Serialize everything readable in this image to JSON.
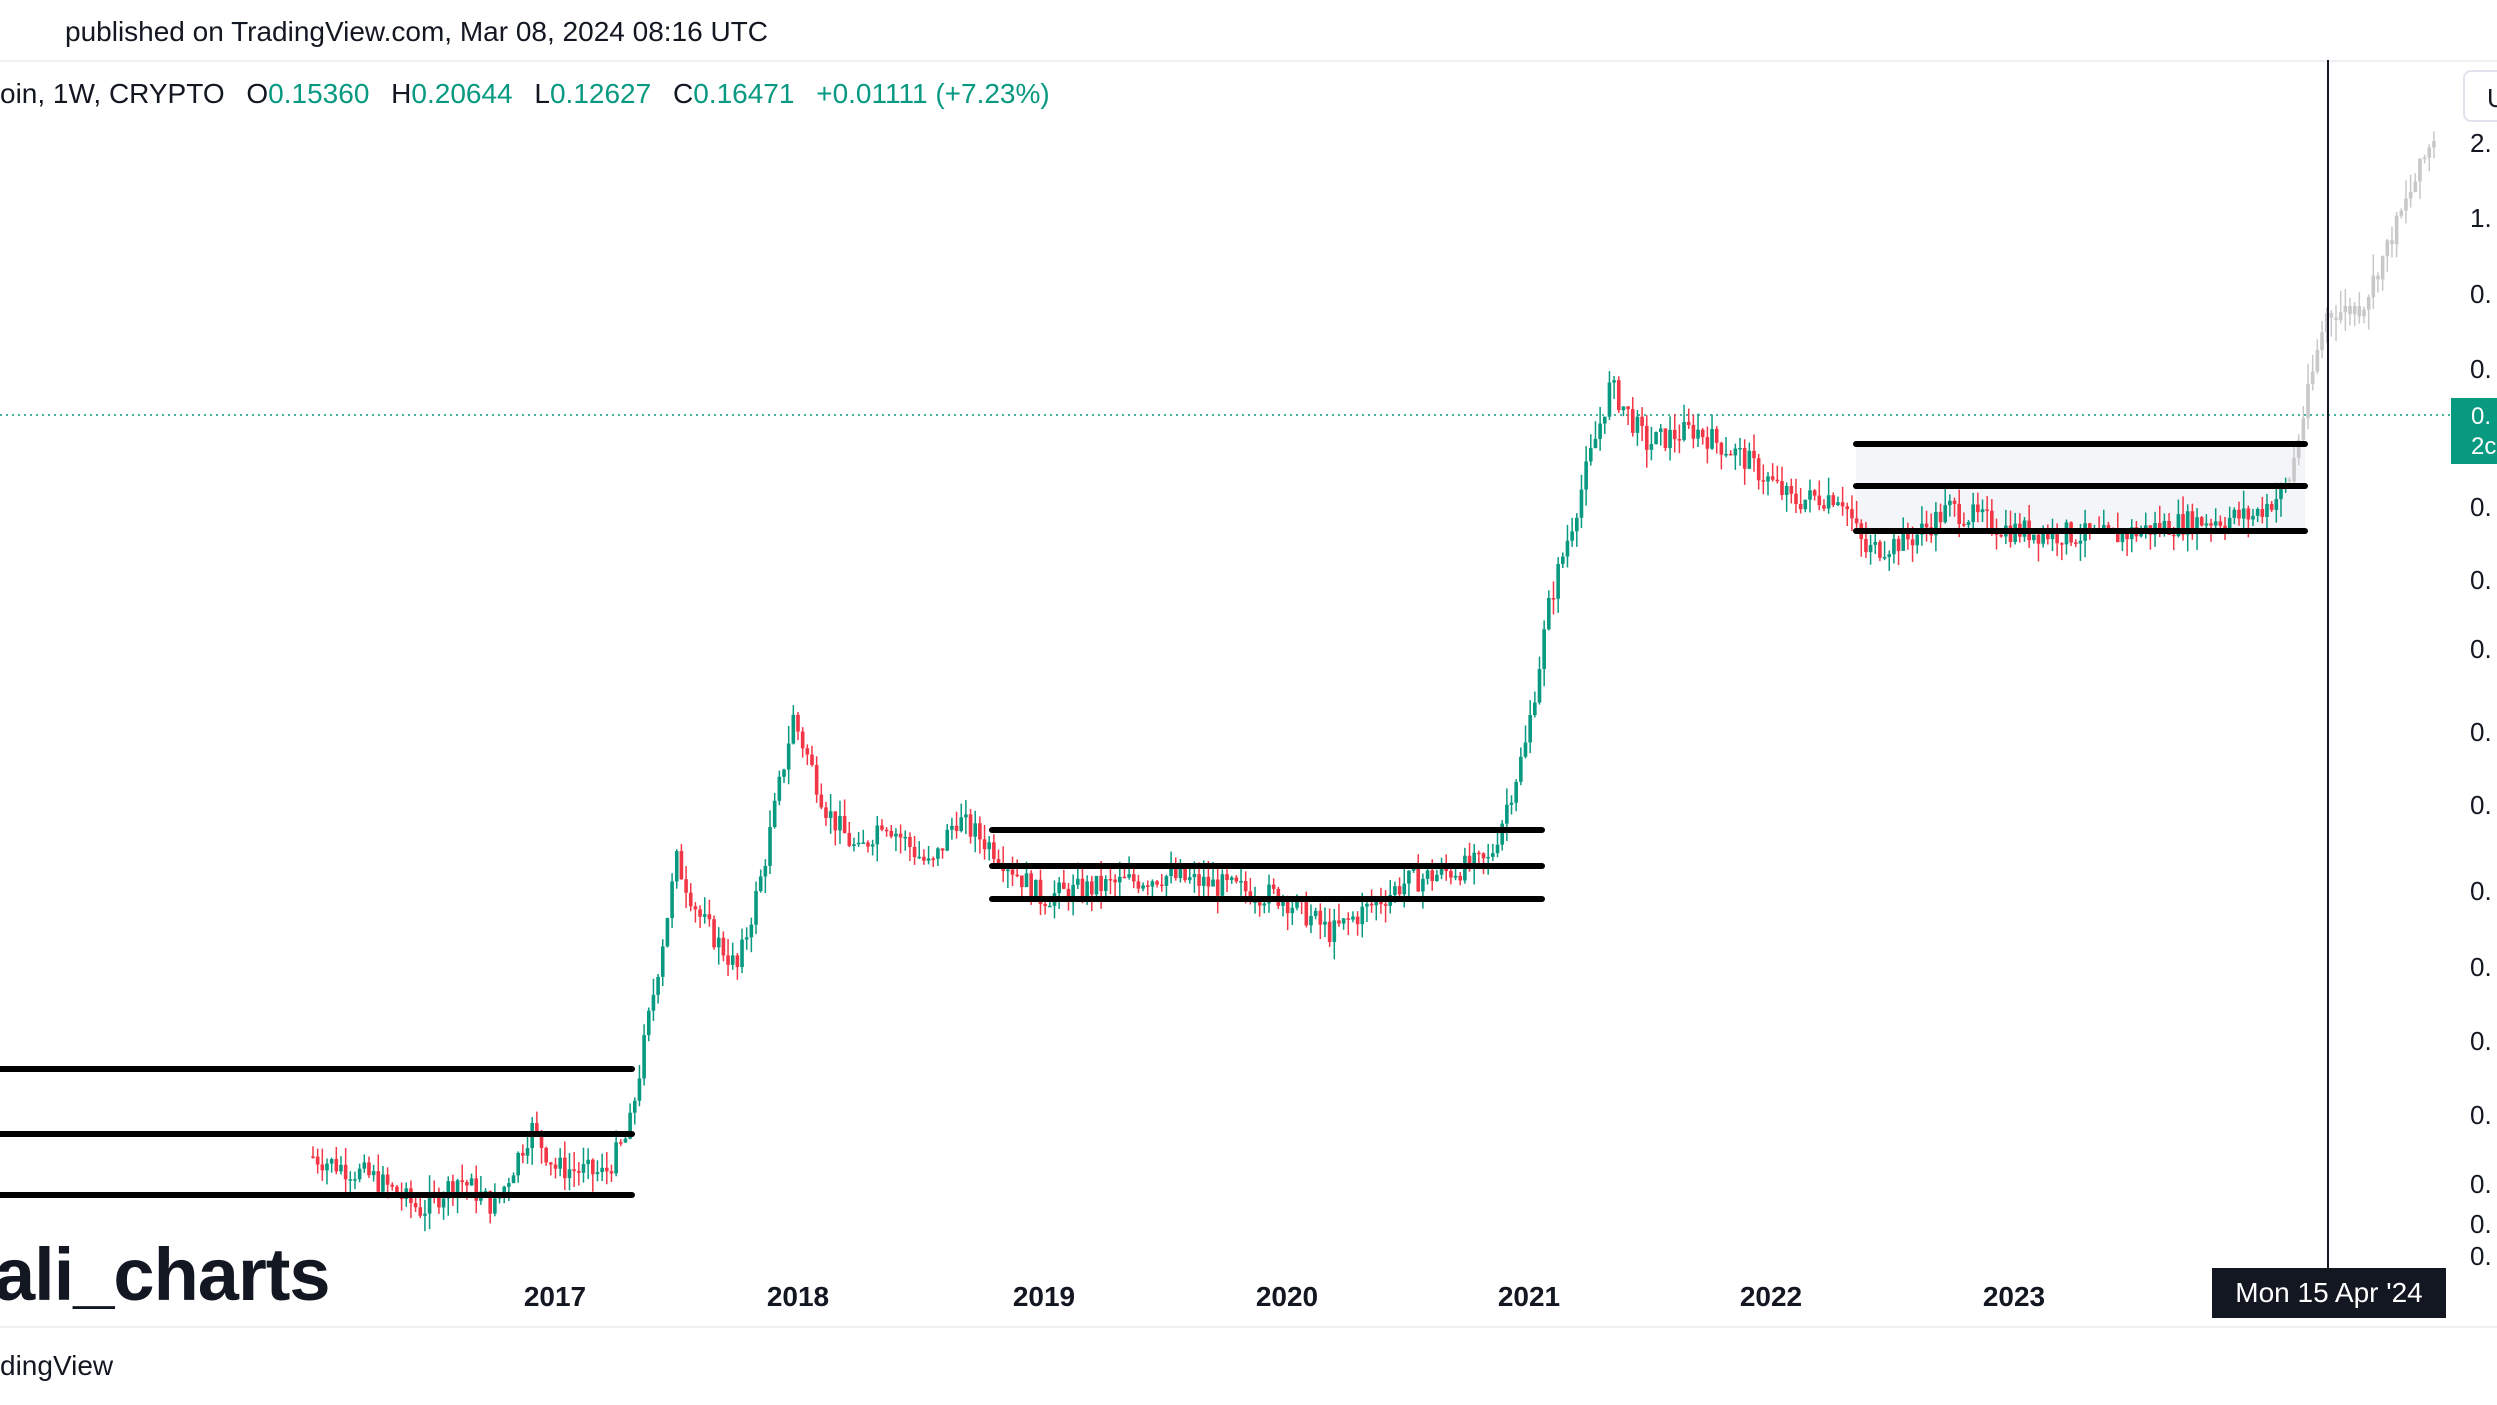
{
  "header": {
    "published": "published on TradingView.com, Mar 08, 2024 08:16 UTC"
  },
  "legend": {
    "symbol": "oin, 1W, CRYPTO",
    "o_label": "O",
    "o_value": "0.15360",
    "h_label": "H",
    "h_value": "0.20644",
    "l_label": "L",
    "l_value": "0.12627",
    "c_label": "C",
    "c_value": "0.16471",
    "change": "+0.01111 (+7.23%)"
  },
  "watermark": "ali_charts",
  "footer": {
    "logo_text": "dingView"
  },
  "crosshair": {
    "date_label": "Mon 15 Apr '24"
  },
  "price_tag": {
    "line1": "0.",
    "line2": "2c"
  },
  "unit_button": "U",
  "colors": {
    "up": "#089981",
    "down": "#F23645",
    "ghost": "#c8c8c8",
    "level": "#000000",
    "text": "#131722"
  },
  "chart_data": {
    "type": "candlestick",
    "timeframe": "1W",
    "scale": "log",
    "x_ticks": [
      "2017",
      "2018",
      "2019",
      "2020",
      "2021",
      "2022",
      "2023"
    ],
    "y_ticks": [
      "2.",
      "1.",
      "0.",
      "0.",
      "0.",
      "0.",
      "0.",
      "0.",
      "0.",
      "0.",
      "0.",
      "0.",
      "0.",
      "0.",
      "0.",
      "0."
    ],
    "last_price_line": 0.16471,
    "crosshair_date": "2024-04-15",
    "consolidation_zones": [
      {
        "start": "2016",
        "end": "2017-04",
        "levels": [
          "top",
          "mid",
          "bottom"
        ]
      },
      {
        "start": "2018-11",
        "end": "2020-12",
        "levels": [
          "top",
          "mid",
          "bottom"
        ]
      },
      {
        "start": "2022-05",
        "end": "2024-03",
        "levels": [
          "top",
          "mid",
          "bottom"
        ],
        "shaded": true
      }
    ],
    "price_path_anchors": [
      {
        "year": 2016.0,
        "level": 1.3
      },
      {
        "year": 2016.25,
        "level": 1.0
      },
      {
        "year": 2016.45,
        "level": 0.55
      },
      {
        "year": 2016.6,
        "level": 1.0
      },
      {
        "year": 2016.75,
        "level": 0.6
      },
      {
        "year": 2016.9,
        "level": 1.7
      },
      {
        "year": 2017.0,
        "level": 1.15
      },
      {
        "year": 2017.2,
        "level": 1.05
      },
      {
        "year": 2017.3,
        "level": 1.6
      },
      {
        "year": 2017.4,
        "level": 3.5
      },
      {
        "year": 2017.5,
        "level": 5.4
      },
      {
        "year": 2017.6,
        "level": 4.6
      },
      {
        "year": 2017.75,
        "level": 3.9
      },
      {
        "year": 2017.85,
        "level": 5.2
      },
      {
        "year": 2017.98,
        "level": 7.4
      },
      {
        "year": 2018.12,
        "level": 6.1
      },
      {
        "year": 2018.25,
        "level": 5.5
      },
      {
        "year": 2018.35,
        "level": 6.0
      },
      {
        "year": 2018.55,
        "level": 5.3
      },
      {
        "year": 2018.65,
        "level": 6.0
      },
      {
        "year": 2018.8,
        "level": 5.6
      },
      {
        "year": 2019.0,
        "level": 4.9
      },
      {
        "year": 2019.5,
        "level": 5.2
      },
      {
        "year": 2020.0,
        "level": 4.9
      },
      {
        "year": 2020.2,
        "level": 4.4
      },
      {
        "year": 2020.5,
        "level": 5.1
      },
      {
        "year": 2020.85,
        "level": 5.4
      },
      {
        "year": 2021.0,
        "level": 7.0
      },
      {
        "year": 2021.1,
        "level": 9.0
      },
      {
        "year": 2021.25,
        "level": 10.8
      },
      {
        "year": 2021.35,
        "level": 12.0
      },
      {
        "year": 2021.5,
        "level": 11.2
      },
      {
        "year": 2021.7,
        "level": 11.4
      },
      {
        "year": 2021.9,
        "level": 11.0
      },
      {
        "year": 2022.1,
        "level": 10.4
      },
      {
        "year": 2022.3,
        "level": 10.5
      },
      {
        "year": 2022.4,
        "level": 9.7
      },
      {
        "year": 2022.6,
        "level": 9.9
      },
      {
        "year": 2022.75,
        "level": 10.3
      },
      {
        "year": 2023.0,
        "level": 10.0
      },
      {
        "year": 2023.4,
        "level": 9.9
      },
      {
        "year": 2023.7,
        "level": 10.1
      },
      {
        "year": 2024.0,
        "level": 10.2
      },
      {
        "year": 2024.15,
        "level": 10.6
      }
    ],
    "ghost_projection": [
      {
        "year": 2024.15,
        "level": 10.7
      },
      {
        "year": 2024.3,
        "level": 13.0
      },
      {
        "year": 2024.45,
        "level": 13.1
      },
      {
        "year": 2024.6,
        "level": 14.3
      },
      {
        "year": 2024.75,
        "level": 15.5
      }
    ]
  }
}
